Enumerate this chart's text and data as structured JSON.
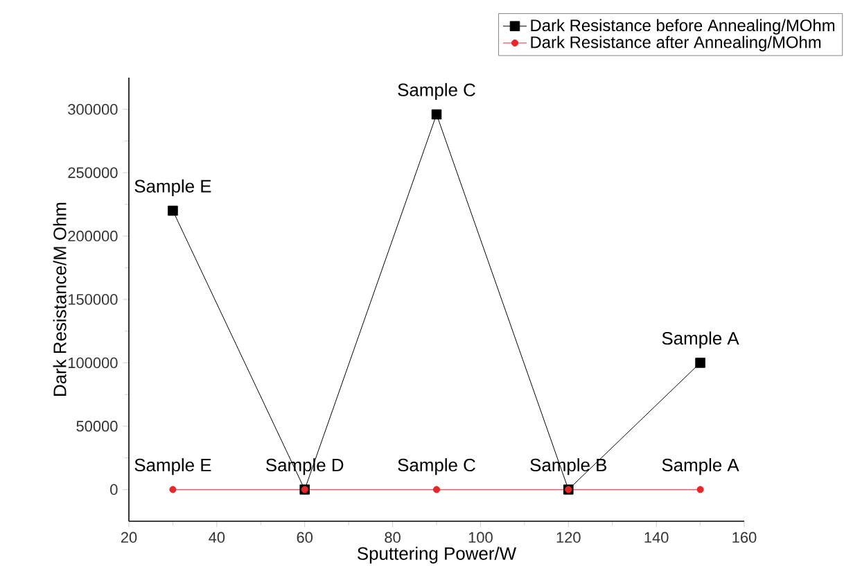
{
  "chart_data": {
    "type": "line",
    "xlabel": "Sputtering Power/W",
    "ylabel": "Dark Resistance/M Ohm",
    "x": [
      30,
      60,
      90,
      120,
      150
    ],
    "series": [
      {
        "name": "Dark Resistance before Annealing/MOhm",
        "color": "#000000",
        "marker": "square",
        "values": [
          220000,
          0,
          296000,
          0,
          100000
        ]
      },
      {
        "name": "Dark Resistance after Annealing/MOhm",
        "color": "#e8262a",
        "marker": "circle",
        "values": [
          0,
          0,
          0,
          0,
          0
        ]
      }
    ],
    "xlim": [
      20,
      160
    ],
    "xticks": [
      20,
      40,
      60,
      80,
      100,
      120,
      140,
      160
    ],
    "ylim": [
      -25000,
      325000
    ],
    "yticks": [
      0,
      50000,
      100000,
      150000,
      200000,
      250000,
      300000
    ],
    "grid": false,
    "legend": "top right",
    "line_style": "solid",
    "annotations": [
      {
        "text": "Sample E",
        "x": 30,
        "y": 220000
      },
      {
        "text": "Sample D",
        "x": 60,
        "y": 0
      },
      {
        "text": "Sample C",
        "x": 90,
        "y": 296000
      },
      {
        "text": "Sample B",
        "x": 120,
        "y": 0
      },
      {
        "text": "Sample A",
        "x": 150,
        "y": 100000
      },
      {
        "text": "Sample E",
        "x": 30,
        "y": 0
      },
      {
        "text": "Sample C",
        "x": 90,
        "y": 0
      },
      {
        "text": "Sample A",
        "x": 150,
        "y": 0
      }
    ]
  }
}
